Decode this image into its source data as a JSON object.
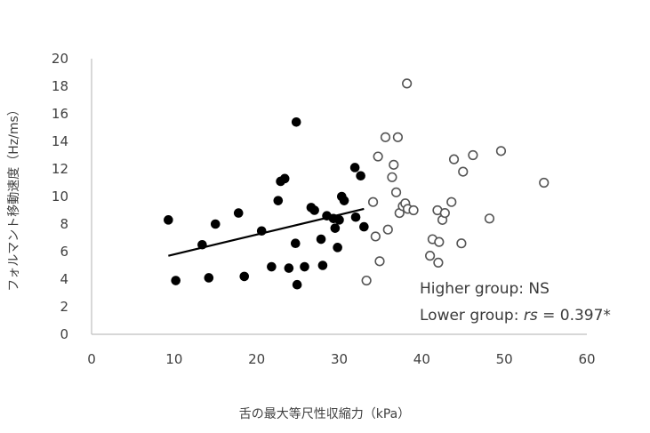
{
  "chart_data": {
    "type": "scatter",
    "xlabel": "舌の最大等尺性収縮力（kPa）",
    "ylabel": "フォルマント移動速度（Hz/ms）",
    "xlim": [
      0,
      60
    ],
    "ylim": [
      0,
      20
    ],
    "x_ticks": [
      "0",
      "10",
      "20",
      "30",
      "40",
      "50",
      "60"
    ],
    "y_ticks": [
      "0",
      "2",
      "4",
      "6",
      "8",
      "10",
      "12",
      "14",
      "16",
      "18",
      "20"
    ],
    "grid": false,
    "annotations": {
      "higher": "Higher group: NS",
      "lower_prefix": "Lower group: ",
      "lower_stat": "rs",
      "lower_suffix": " = 0.397*"
    },
    "series": [
      {
        "marker": "filled-circle",
        "color": "#000000",
        "points": [
          [
            9.3,
            8.3
          ],
          [
            10.2,
            3.9
          ],
          [
            13.4,
            6.5
          ],
          [
            14.2,
            4.1
          ],
          [
            15.0,
            8.0
          ],
          [
            17.8,
            8.8
          ],
          [
            18.5,
            4.2
          ],
          [
            20.6,
            7.5
          ],
          [
            21.8,
            4.9
          ],
          [
            22.6,
            9.7
          ],
          [
            22.9,
            11.1
          ],
          [
            23.4,
            11.3
          ],
          [
            23.9,
            4.8
          ],
          [
            24.7,
            6.6
          ],
          [
            24.8,
            15.4
          ],
          [
            24.9,
            3.6
          ],
          [
            25.8,
            4.9
          ],
          [
            26.6,
            9.2
          ],
          [
            27.0,
            9.0
          ],
          [
            27.8,
            6.9
          ],
          [
            28.0,
            5.0
          ],
          [
            28.5,
            8.6
          ],
          [
            29.3,
            8.4
          ],
          [
            29.5,
            7.7
          ],
          [
            29.8,
            6.3
          ],
          [
            30.0,
            8.3
          ],
          [
            30.3,
            10.0
          ],
          [
            30.6,
            9.7
          ],
          [
            31.9,
            12.1
          ],
          [
            32.0,
            8.5
          ],
          [
            32.6,
            11.5
          ],
          [
            33.0,
            7.8
          ]
        ]
      },
      {
        "marker": "open-circle",
        "color": "#555555",
        "points": [
          [
            33.3,
            3.9
          ],
          [
            34.1,
            9.6
          ],
          [
            34.4,
            7.1
          ],
          [
            34.7,
            12.9
          ],
          [
            34.9,
            5.3
          ],
          [
            35.6,
            14.3
          ],
          [
            35.9,
            7.6
          ],
          [
            36.4,
            11.4
          ],
          [
            36.6,
            12.3
          ],
          [
            36.9,
            10.3
          ],
          [
            37.1,
            14.3
          ],
          [
            37.3,
            8.8
          ],
          [
            37.7,
            9.3
          ],
          [
            38.0,
            9.5
          ],
          [
            38.2,
            18.2
          ],
          [
            38.3,
            9.1
          ],
          [
            39.0,
            9.0
          ],
          [
            41.0,
            5.7
          ],
          [
            41.3,
            6.9
          ],
          [
            41.9,
            9.0
          ],
          [
            42.0,
            5.2
          ],
          [
            42.1,
            6.7
          ],
          [
            42.5,
            8.3
          ],
          [
            42.8,
            8.8
          ],
          [
            43.6,
            9.6
          ],
          [
            43.9,
            12.7
          ],
          [
            44.8,
            6.6
          ],
          [
            45.0,
            11.8
          ],
          [
            46.2,
            13.0
          ],
          [
            48.2,
            8.4
          ],
          [
            49.6,
            13.3
          ],
          [
            54.8,
            11.0
          ]
        ]
      }
    ],
    "trendline": {
      "series": 0,
      "x": [
        9.3,
        33.0
      ],
      "y": [
        5.7,
        9.1
      ]
    }
  }
}
